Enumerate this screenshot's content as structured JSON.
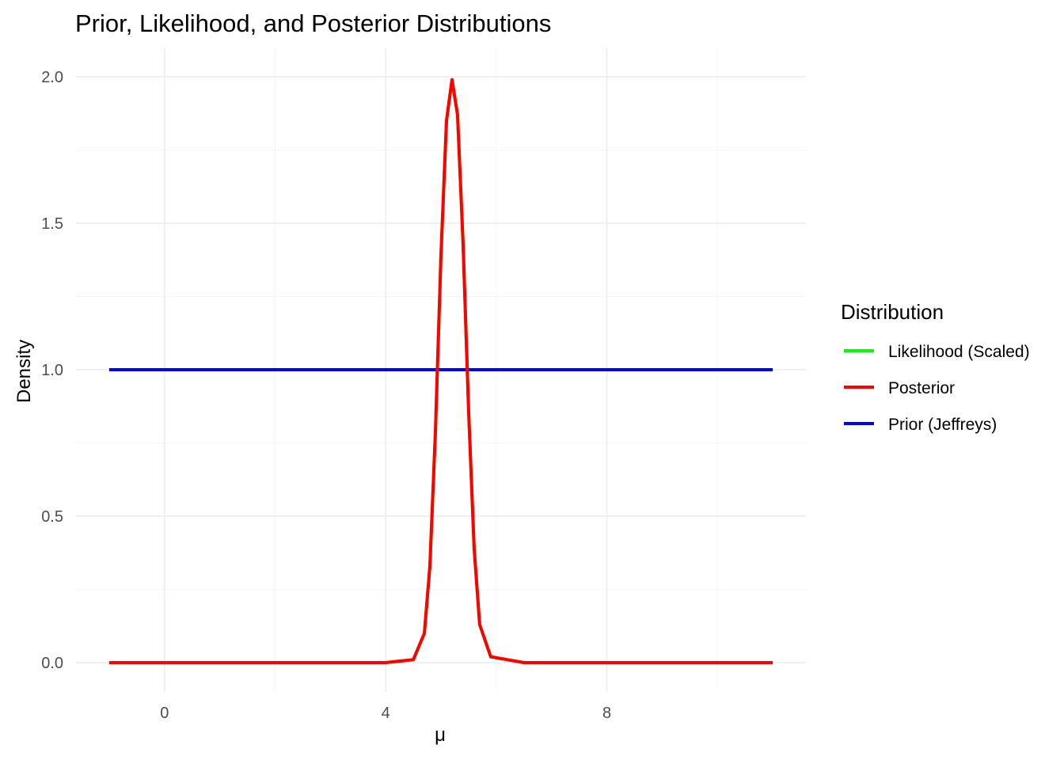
{
  "chart_data": {
    "type": "line",
    "title": "Prior, Likelihood, and Posterior Distributions",
    "xlabel": "μ",
    "ylabel": "Density",
    "xlim": [
      -1.6,
      11.6
    ],
    "ylim": [
      -0.1,
      2.1
    ],
    "x_ticks": [
      0,
      4,
      8
    ],
    "x_tick_labels": [
      "0",
      "4",
      "8"
    ],
    "y_ticks": [
      0.0,
      0.5,
      1.0,
      1.5,
      2.0
    ],
    "y_tick_labels": [
      "0.0",
      "0.5",
      "1.0",
      "1.5",
      "2.0"
    ],
    "grid": true,
    "legend": {
      "title": "Distribution",
      "placement": "right",
      "entries": [
        {
          "name": "Likelihood (Scaled)",
          "color": "#00ff00"
        },
        {
          "name": "Posterior",
          "color": "#ff0000"
        },
        {
          "name": "Prior (Jeffreys)",
          "color": "#0000ff"
        }
      ]
    },
    "series": [
      {
        "name": "Likelihood (Scaled)",
        "color": "#00ff00",
        "x": [
          -1,
          0,
          1,
          2,
          3,
          4,
          4.5,
          4.7,
          4.8,
          4.9,
          5.0,
          5.1,
          5.2,
          5.3,
          5.4,
          5.5,
          5.6,
          5.7,
          5.9,
          6.5,
          8,
          9,
          10,
          11
        ],
        "y": [
          0,
          0,
          0,
          0,
          0,
          0,
          0.01,
          0.1,
          0.33,
          0.79,
          1.39,
          1.85,
          1.99,
          1.87,
          1.43,
          0.86,
          0.39,
          0.13,
          0.02,
          0,
          0,
          0,
          0,
          0
        ]
      },
      {
        "name": "Posterior",
        "color": "#ff0000",
        "x": [
          -1,
          0,
          1,
          2,
          3,
          4,
          4.5,
          4.7,
          4.8,
          4.9,
          5.0,
          5.1,
          5.2,
          5.3,
          5.4,
          5.5,
          5.6,
          5.7,
          5.9,
          6.5,
          8,
          9,
          10,
          11
        ],
        "y": [
          0,
          0,
          0,
          0,
          0,
          0,
          0.01,
          0.1,
          0.33,
          0.79,
          1.39,
          1.85,
          1.99,
          1.87,
          1.43,
          0.86,
          0.39,
          0.13,
          0.02,
          0,
          0,
          0,
          0,
          0
        ]
      },
      {
        "name": "Prior (Jeffreys)",
        "color": "#0000ff",
        "x": [
          -1,
          11
        ],
        "y": [
          1.0,
          1.0
        ]
      }
    ]
  }
}
